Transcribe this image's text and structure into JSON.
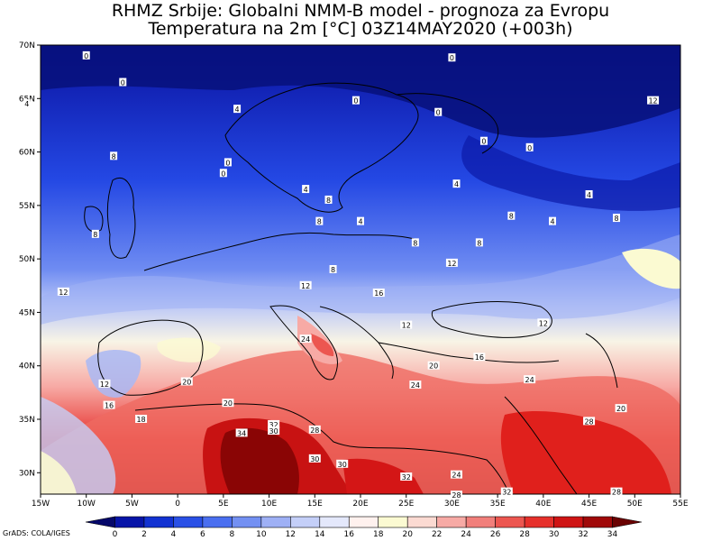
{
  "title": {
    "line1": "RHMZ Srbije: Globalni NMM-B model - prognoza za Evropu",
    "line2": "Temperatura na 2m [°C] 03Z14MAY2020 (+003h)"
  },
  "axes": {
    "lon_labels": [
      "15W",
      "10W",
      "5W",
      "0",
      "5E",
      "10E",
      "15E",
      "20E",
      "25E",
      "30E",
      "35E",
      "40E",
      "45E",
      "50E",
      "55E"
    ],
    "lat_labels": [
      "70N",
      "65N",
      "60N",
      "55N",
      "50N",
      "45N",
      "40N",
      "35N",
      "30N"
    ]
  },
  "contour_labels": [
    {
      "text": "0",
      "lon": -10,
      "lat": 69
    },
    {
      "text": "0",
      "lon": -6,
      "lat": 66.5
    },
    {
      "text": "4",
      "lon": -16.5,
      "lat": 64.5
    },
    {
      "text": "4",
      "lon": 6.5,
      "lat": 64
    },
    {
      "text": "0",
      "lon": 19.5,
      "lat": 64.8
    },
    {
      "text": "0",
      "lon": 30,
      "lat": 68.8
    },
    {
      "text": "0",
      "lon": 28.5,
      "lat": 63.7
    },
    {
      "text": "12",
      "lon": 52,
      "lat": 64.8
    },
    {
      "text": "8",
      "lon": -7,
      "lat": 59.6
    },
    {
      "text": "0",
      "lon": 5.5,
      "lat": 59
    },
    {
      "text": "0",
      "lon": 5,
      "lat": 58
    },
    {
      "text": "0",
      "lon": 33.5,
      "lat": 61
    },
    {
      "text": "0",
      "lon": 38.5,
      "lat": 60.4
    },
    {
      "text": "4",
      "lon": 14,
      "lat": 56.5
    },
    {
      "text": "8",
      "lon": 16.5,
      "lat": 55.5
    },
    {
      "text": "4",
      "lon": 30.5,
      "lat": 57
    },
    {
      "text": "4",
      "lon": 20,
      "lat": 53.5
    },
    {
      "text": "8",
      "lon": 15.5,
      "lat": 53.5
    },
    {
      "text": "8",
      "lon": -9,
      "lat": 52.3
    },
    {
      "text": "8",
      "lon": 36.5,
      "lat": 54
    },
    {
      "text": "4",
      "lon": 41,
      "lat": 53.5
    },
    {
      "text": "4",
      "lon": 45,
      "lat": 56
    },
    {
      "text": "8",
      "lon": 48,
      "lat": 53.8
    },
    {
      "text": "8",
      "lon": 26,
      "lat": 51.5
    },
    {
      "text": "8",
      "lon": 33,
      "lat": 51.5
    },
    {
      "text": "12",
      "lon": 30,
      "lat": 49.6
    },
    {
      "text": "8",
      "lon": 17,
      "lat": 49
    },
    {
      "text": "12",
      "lon": -12.5,
      "lat": 46.9
    },
    {
      "text": "12",
      "lon": 14,
      "lat": 47.5
    },
    {
      "text": "16",
      "lon": 22,
      "lat": 46.8
    },
    {
      "text": "12",
      "lon": 25,
      "lat": 43.8
    },
    {
      "text": "12",
      "lon": 40,
      "lat": 44
    },
    {
      "text": "24",
      "lon": 14,
      "lat": 42.5
    },
    {
      "text": "16",
      "lon": 33,
      "lat": 40.8
    },
    {
      "text": "20",
      "lon": 28,
      "lat": 40
    },
    {
      "text": "12",
      "lon": -8,
      "lat": 38.3
    },
    {
      "text": "20",
      "lon": 1,
      "lat": 38.5
    },
    {
      "text": "24",
      "lon": 26,
      "lat": 38.2
    },
    {
      "text": "24",
      "lon": 38.5,
      "lat": 38.7
    },
    {
      "text": "20",
      "lon": 48.5,
      "lat": 36
    },
    {
      "text": "16",
      "lon": -7.5,
      "lat": 36.3
    },
    {
      "text": "18",
      "lon": -4,
      "lat": 35
    },
    {
      "text": "20",
      "lon": 5.5,
      "lat": 36.5
    },
    {
      "text": "32",
      "lon": 10.5,
      "lat": 34.5
    },
    {
      "text": "30",
      "lon": 10.5,
      "lat": 33.9
    },
    {
      "text": "34",
      "lon": 7,
      "lat": 33.7
    },
    {
      "text": "28",
      "lon": 15,
      "lat": 34
    },
    {
      "text": "28",
      "lon": 45,
      "lat": 34.8
    },
    {
      "text": "30",
      "lon": 15,
      "lat": 31.3
    },
    {
      "text": "30",
      "lon": 18,
      "lat": 30.8
    },
    {
      "text": "32",
      "lon": 25,
      "lat": 29.6
    },
    {
      "text": "24",
      "lon": 30.5,
      "lat": 29.8
    },
    {
      "text": "28",
      "lon": 30.5,
      "lat": 27.9
    },
    {
      "text": "32",
      "lon": 36,
      "lat": 28.2
    },
    {
      "text": "28",
      "lon": 48,
      "lat": 28.2
    }
  ],
  "colorbar": {
    "labels": [
      "0",
      "2",
      "4",
      "6",
      "8",
      "10",
      "12",
      "14",
      "16",
      "18",
      "20",
      "22",
      "24",
      "26",
      "28",
      "30",
      "32",
      "34"
    ],
    "colors": [
      "#05086a",
      "#0714a8",
      "#1232d2",
      "#2950e6",
      "#4a6ff0",
      "#7390f2",
      "#9eb0f5",
      "#c4cff8",
      "#e4e8fb",
      "#fff1ee",
      "#fbfad2",
      "#fbdad2",
      "#f7aaa5",
      "#f17f7b",
      "#ec5650",
      "#e6302b",
      "#cf1414",
      "#a00909",
      "#6a0202"
    ]
  },
  "credit": "GrADS: COLA/IGES"
}
